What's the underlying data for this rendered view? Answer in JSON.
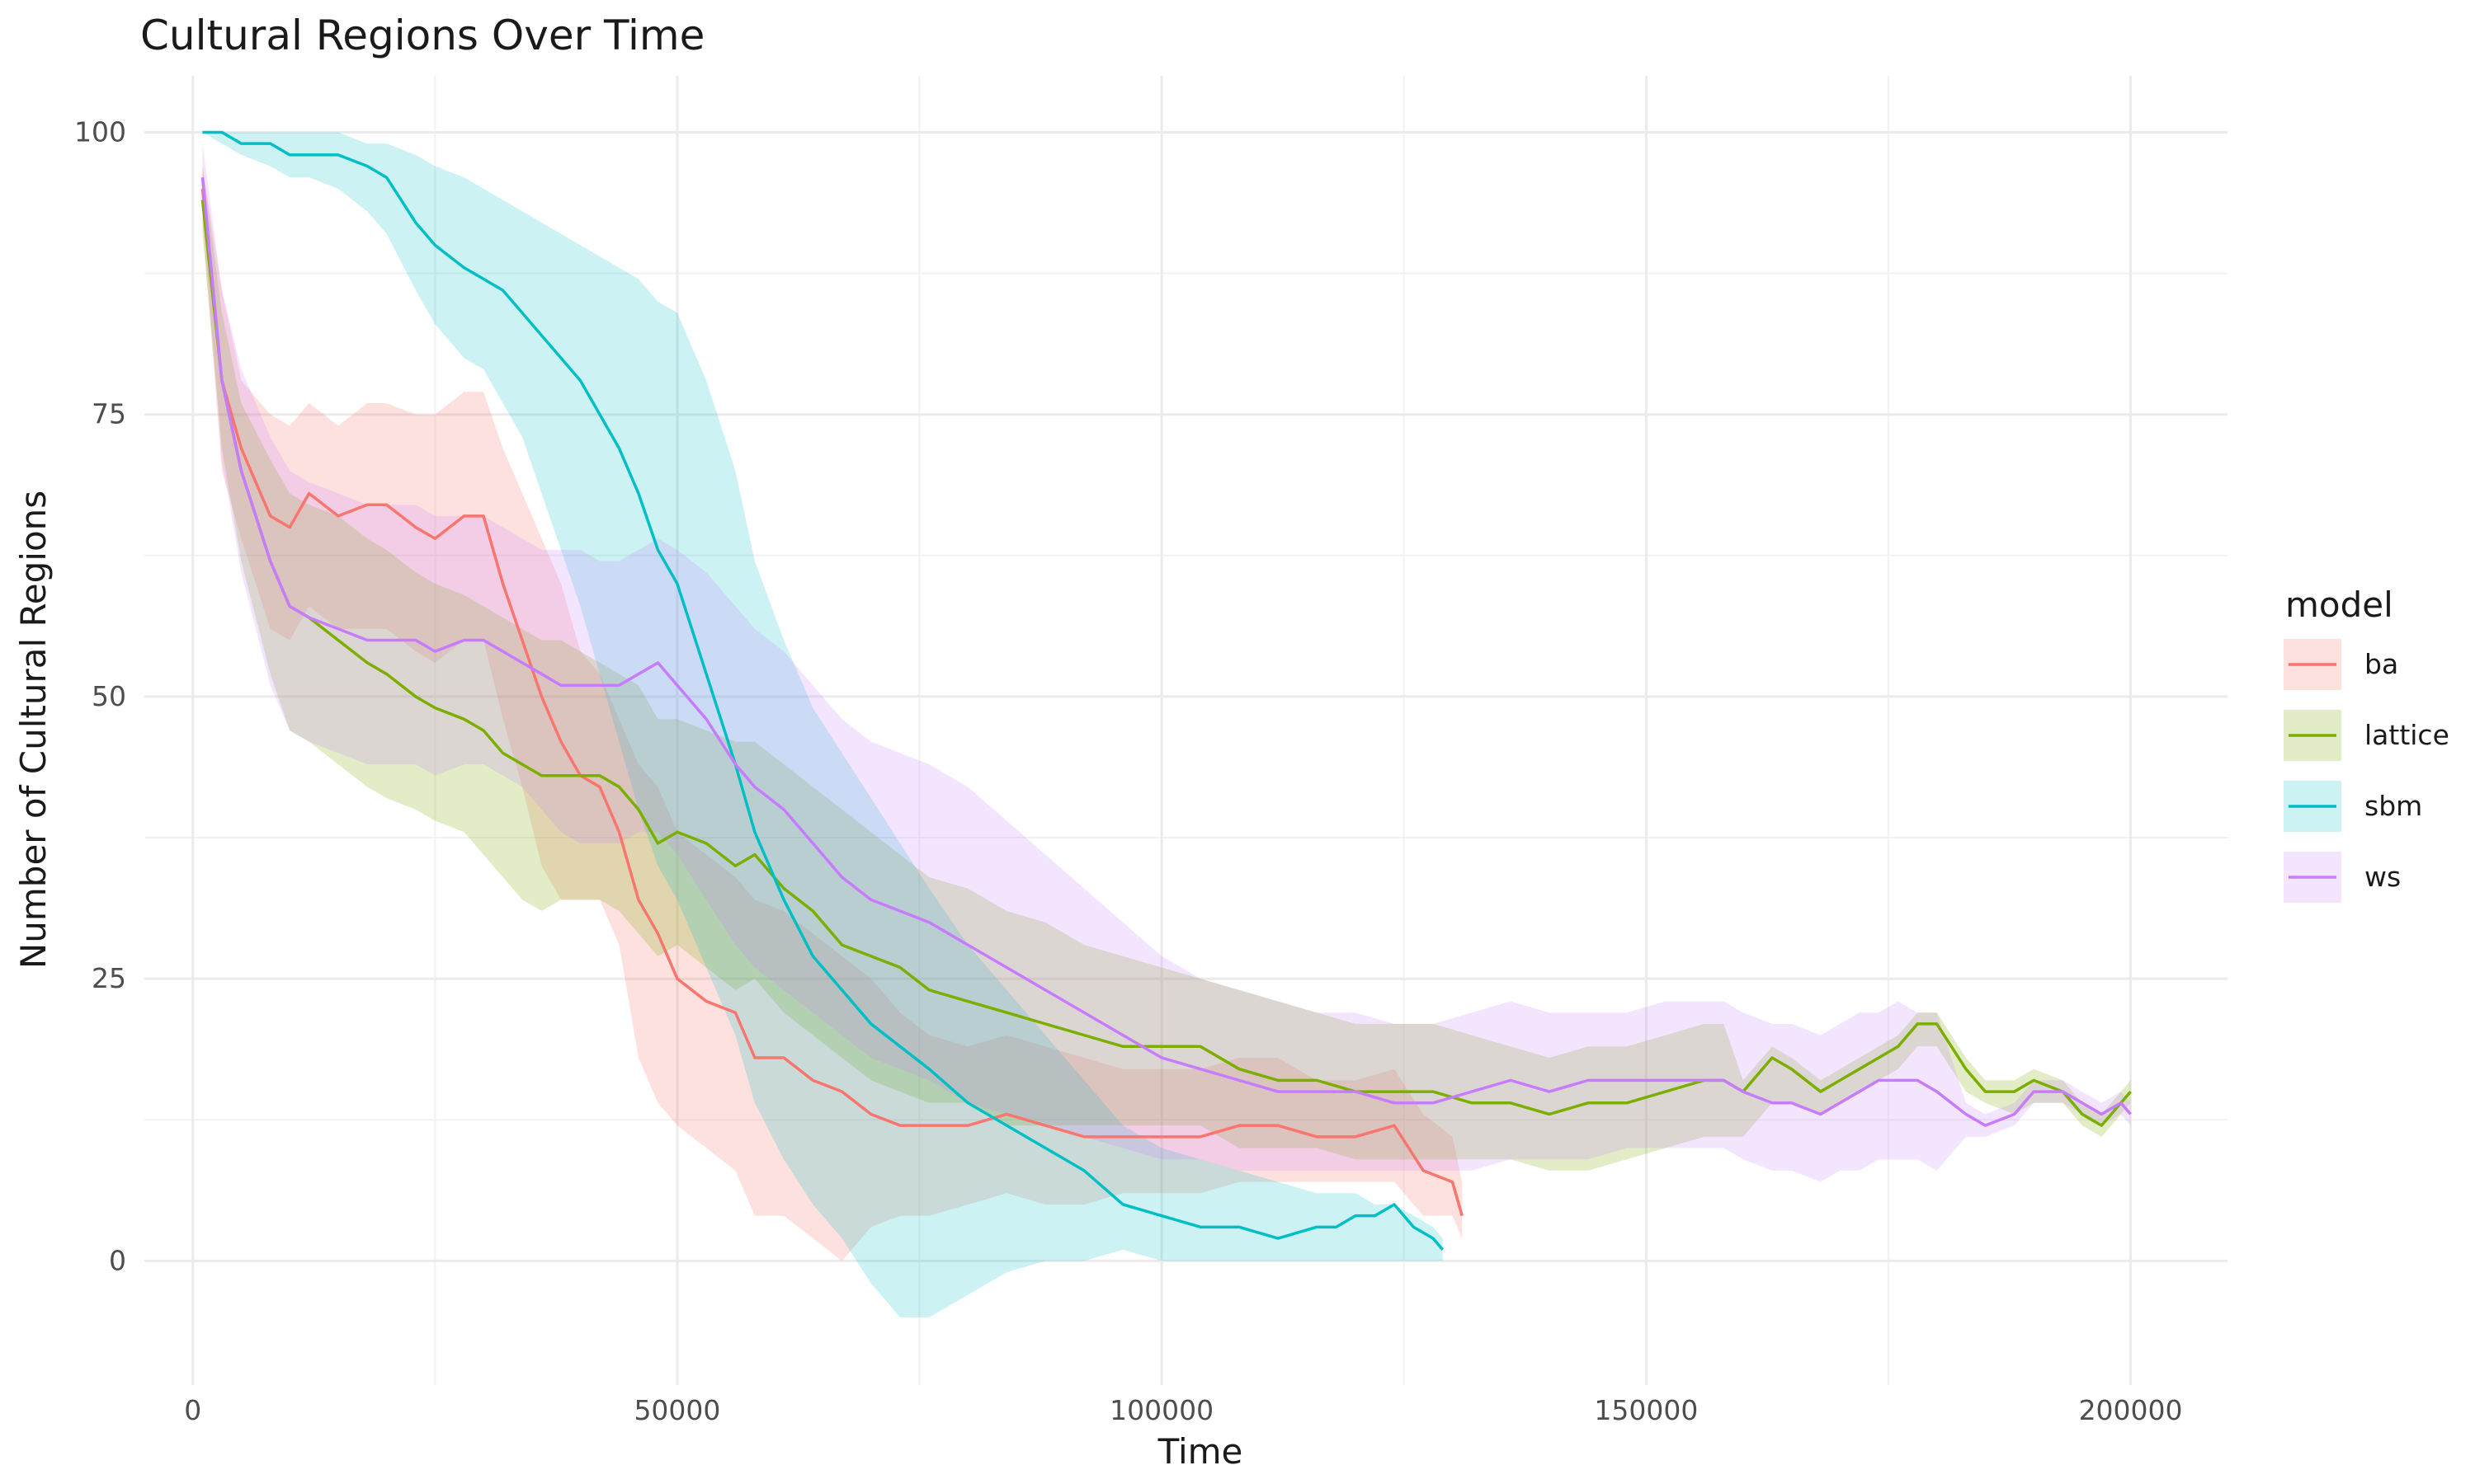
{
  "chart_data": {
    "type": "line",
    "title": "Cultural Regions Over Time",
    "xlabel": "Time",
    "ylabel": "Number of Cultural Regions",
    "xlim": [
      -5000,
      210000
    ],
    "ylim": [
      -11,
      105
    ],
    "x_ticks": [
      0,
      50000,
      100000,
      150000,
      200000
    ],
    "x_tick_labels": [
      "0",
      "50000",
      "100000",
      "150000",
      "200000"
    ],
    "y_ticks": [
      0,
      25,
      50,
      75,
      100
    ],
    "y_tick_labels": [
      "0",
      "25",
      "50",
      "75",
      "100"
    ],
    "grid": true,
    "legend": {
      "title": "model",
      "position": "right"
    },
    "series": [
      {
        "name": "ba",
        "color": "#F8766D",
        "ribbon_opacity": 0.22,
        "x": [
          1000,
          3000,
          5000,
          8000,
          10000,
          12000,
          15000,
          18000,
          20000,
          23000,
          25000,
          28000,
          30000,
          32000,
          34000,
          36000,
          38000,
          40000,
          42000,
          44000,
          46000,
          48000,
          50000,
          53000,
          56000,
          58000,
          61000,
          64000,
          67000,
          70000,
          73000,
          76000,
          80000,
          84000,
          88000,
          92000,
          96000,
          100000,
          104000,
          108000,
          112000,
          116000,
          120000,
          124000,
          127000,
          130000,
          131000
        ],
        "y": [
          95,
          78,
          72,
          66,
          65,
          68,
          66,
          67,
          67,
          65,
          64,
          66,
          66,
          60,
          55,
          50,
          46,
          43,
          42,
          38,
          32,
          29,
          25,
          23,
          22,
          18,
          18,
          16,
          15,
          13,
          12,
          12,
          12,
          13,
          12,
          11,
          11,
          11,
          11,
          12,
          12,
          11,
          11,
          12,
          8,
          7,
          4
        ],
        "lower": [
          92,
          70,
          64,
          56,
          55,
          58,
          56,
          56,
          56,
          54,
          53,
          55,
          55,
          48,
          42,
          35,
          32,
          32,
          32,
          28,
          18,
          14,
          12,
          10,
          8,
          4,
          4,
          2,
          0,
          3,
          4,
          4,
          5,
          6,
          5,
          5,
          6,
          6,
          6,
          7,
          7,
          7,
          7,
          7,
          4,
          4,
          2
        ],
        "upper": [
          97,
          86,
          78,
          75,
          74,
          76,
          74,
          76,
          76,
          75,
          75,
          77,
          77,
          72,
          68,
          64,
          60,
          54,
          52,
          48,
          44,
          42,
          38,
          36,
          34,
          32,
          31,
          29,
          27,
          25,
          22,
          20,
          19,
          20,
          19,
          18,
          17,
          17,
          17,
          18,
          18,
          16,
          16,
          17,
          13,
          11,
          7
        ]
      },
      {
        "name": "lattice",
        "color": "#7CAE00",
        "ribbon_opacity": 0.22,
        "x": [
          1000,
          3000,
          5000,
          8000,
          10000,
          12000,
          15000,
          18000,
          20000,
          23000,
          25000,
          28000,
          30000,
          32000,
          34000,
          36000,
          38000,
          40000,
          42000,
          44000,
          46000,
          48000,
          50000,
          53000,
          56000,
          58000,
          61000,
          64000,
          67000,
          70000,
          73000,
          76000,
          80000,
          84000,
          88000,
          92000,
          96000,
          100000,
          104000,
          108000,
          112000,
          116000,
          120000,
          124000,
          128000,
          132000,
          136000,
          140000,
          144000,
          148000,
          152000,
          156000,
          158000,
          160000,
          163000,
          165000,
          168000,
          170000,
          172000,
          174000,
          176000,
          178000,
          180000,
          183000,
          185000,
          188000,
          190000,
          193000,
          195000,
          197000,
          199000,
          200000
        ],
        "y": [
          94,
          78,
          70,
          62,
          58,
          57,
          55,
          53,
          52,
          50,
          49,
          48,
          47,
          45,
          44,
          43,
          43,
          43,
          43,
          42,
          40,
          37,
          38,
          37,
          35,
          36,
          33,
          31,
          28,
          27,
          26,
          24,
          23,
          22,
          21,
          20,
          19,
          19,
          19,
          17,
          16,
          16,
          15,
          15,
          15,
          14,
          14,
          13,
          14,
          14,
          15,
          16,
          16,
          15,
          18,
          17,
          15,
          16,
          17,
          18,
          19,
          21,
          21,
          17,
          15,
          15,
          16,
          15,
          13,
          12,
          14,
          15
        ],
        "lower": [
          91,
          72,
          62,
          52,
          47,
          46,
          44,
          42,
          41,
          40,
          39,
          38,
          36,
          34,
          32,
          31,
          32,
          32,
          32,
          31,
          29,
          27,
          28,
          26,
          24,
          25,
          22,
          20,
          18,
          16,
          15,
          14,
          14,
          12,
          12,
          12,
          12,
          12,
          12,
          10,
          10,
          10,
          9,
          9,
          9,
          9,
          9,
          8,
          8,
          9,
          10,
          11,
          11,
          11,
          14,
          14,
          13,
          14,
          15,
          16,
          17,
          19,
          19,
          15,
          14,
          13,
          14,
          14,
          12,
          11,
          13,
          14
        ],
        "upper": [
          97,
          84,
          76,
          71,
          68,
          67,
          66,
          64,
          63,
          61,
          60,
          59,
          58,
          57,
          56,
          55,
          55,
          54,
          53,
          52,
          51,
          48,
          48,
          47,
          46,
          46,
          44,
          42,
          40,
          38,
          36,
          34,
          33,
          31,
          30,
          28,
          27,
          26,
          25,
          24,
          23,
          22,
          21,
          21,
          21,
          20,
          19,
          18,
          19,
          19,
          20,
          21,
          21,
          16,
          19,
          18,
          16,
          17,
          18,
          19,
          20,
          22,
          22,
          18,
          16,
          16,
          17,
          16,
          14,
          13,
          15,
          16
        ]
      },
      {
        "name": "sbm",
        "color": "#00BFC4",
        "ribbon_opacity": 0.2,
        "x": [
          1000,
          3000,
          5000,
          8000,
          10000,
          12000,
          15000,
          18000,
          20000,
          23000,
          25000,
          28000,
          30000,
          32000,
          34000,
          36000,
          38000,
          40000,
          42000,
          44000,
          46000,
          48000,
          50000,
          53000,
          56000,
          58000,
          61000,
          64000,
          67000,
          70000,
          73000,
          76000,
          80000,
          84000,
          88000,
          92000,
          96000,
          100000,
          104000,
          108000,
          112000,
          116000,
          118000,
          120000,
          122000,
          124000,
          126000,
          128000,
          129000
        ],
        "y": [
          100,
          100,
          99,
          99,
          98,
          98,
          98,
          97,
          96,
          92,
          90,
          88,
          87,
          86,
          84,
          82,
          80,
          78,
          75,
          72,
          68,
          63,
          60,
          52,
          44,
          38,
          32,
          27,
          24,
          21,
          19,
          17,
          14,
          12,
          10,
          8,
          5,
          4,
          3,
          3,
          2,
          3,
          3,
          4,
          4,
          5,
          3,
          2,
          1
        ],
        "lower": [
          100,
          99,
          98,
          97,
          96,
          96,
          95,
          93,
          91,
          86,
          83,
          80,
          79,
          76,
          73,
          68,
          63,
          58,
          52,
          46,
          40,
          35,
          32,
          26,
          20,
          14,
          9,
          5,
          2,
          -2,
          -5,
          -5,
          -3,
          -1,
          0,
          0,
          1,
          0,
          0,
          0,
          0,
          0,
          0,
          0,
          0,
          0,
          0,
          0,
          0
        ],
        "upper": [
          100,
          100,
          100,
          100,
          100,
          100,
          100,
          99,
          99,
          98,
          97,
          96,
          95,
          94,
          93,
          92,
          91,
          90,
          89,
          88,
          87,
          85,
          84,
          78,
          70,
          62,
          55,
          49,
          45,
          41,
          37,
          33,
          28,
          24,
          20,
          16,
          12,
          10,
          9,
          8,
          7,
          6,
          6,
          6,
          5,
          5,
          4,
          3,
          2
        ]
      },
      {
        "name": "ws",
        "color": "#C77CFF",
        "ribbon_opacity": 0.2,
        "x": [
          1000,
          3000,
          5000,
          8000,
          10000,
          12000,
          15000,
          18000,
          20000,
          23000,
          25000,
          28000,
          30000,
          32000,
          34000,
          36000,
          38000,
          40000,
          42000,
          44000,
          46000,
          48000,
          50000,
          53000,
          56000,
          58000,
          61000,
          64000,
          67000,
          70000,
          73000,
          76000,
          80000,
          84000,
          88000,
          92000,
          96000,
          100000,
          104000,
          108000,
          112000,
          116000,
          120000,
          124000,
          128000,
          132000,
          136000,
          140000,
          144000,
          148000,
          152000,
          156000,
          158000,
          160000,
          163000,
          165000,
          168000,
          170000,
          172000,
          174000,
          176000,
          178000,
          180000,
          183000,
          185000,
          188000,
          190000,
          193000,
          195000,
          197000,
          199000,
          200000
        ],
        "y": [
          96,
          78,
          70,
          62,
          58,
          57,
          56,
          55,
          55,
          55,
          54,
          55,
          55,
          54,
          53,
          52,
          51,
          51,
          51,
          51,
          52,
          53,
          51,
          48,
          44,
          42,
          40,
          37,
          34,
          32,
          31,
          30,
          28,
          26,
          24,
          22,
          20,
          18,
          17,
          16,
          15,
          15,
          15,
          14,
          14,
          15,
          16,
          15,
          16,
          16,
          16,
          16,
          16,
          15,
          14,
          14,
          13,
          14,
          15,
          16,
          16,
          16,
          15,
          13,
          12,
          13,
          15,
          15,
          14,
          13,
          14,
          13
        ],
        "lower": [
          93,
          71,
          61,
          51,
          47,
          46,
          45,
          44,
          44,
          44,
          43,
          44,
          44,
          43,
          42,
          40,
          38,
          37,
          37,
          37,
          38,
          38,
          36,
          32,
          28,
          26,
          24,
          22,
          20,
          18,
          17,
          16,
          14,
          13,
          12,
          11,
          10,
          9,
          9,
          8,
          8,
          8,
          8,
          8,
          8,
          8,
          9,
          9,
          9,
          10,
          10,
          10,
          10,
          9,
          8,
          8,
          7,
          8,
          8,
          9,
          9,
          9,
          8,
          11,
          11,
          12,
          14,
          14,
          13,
          12,
          13,
          12
        ],
        "upper": [
          99,
          86,
          79,
          73,
          70,
          69,
          68,
          67,
          67,
          67,
          66,
          66,
          66,
          65,
          64,
          63,
          63,
          63,
          62,
          62,
          63,
          64,
          63,
          61,
          58,
          56,
          54,
          51,
          48,
          46,
          45,
          44,
          42,
          39,
          36,
          33,
          30,
          27,
          25,
          24,
          23,
          22,
          22,
          21,
          21,
          22,
          23,
          22,
          22,
          22,
          23,
          23,
          23,
          22,
          21,
          21,
          20,
          21,
          22,
          22,
          23,
          22,
          22,
          14,
          13,
          14,
          16,
          16,
          15,
          14,
          15,
          14
        ]
      }
    ]
  }
}
